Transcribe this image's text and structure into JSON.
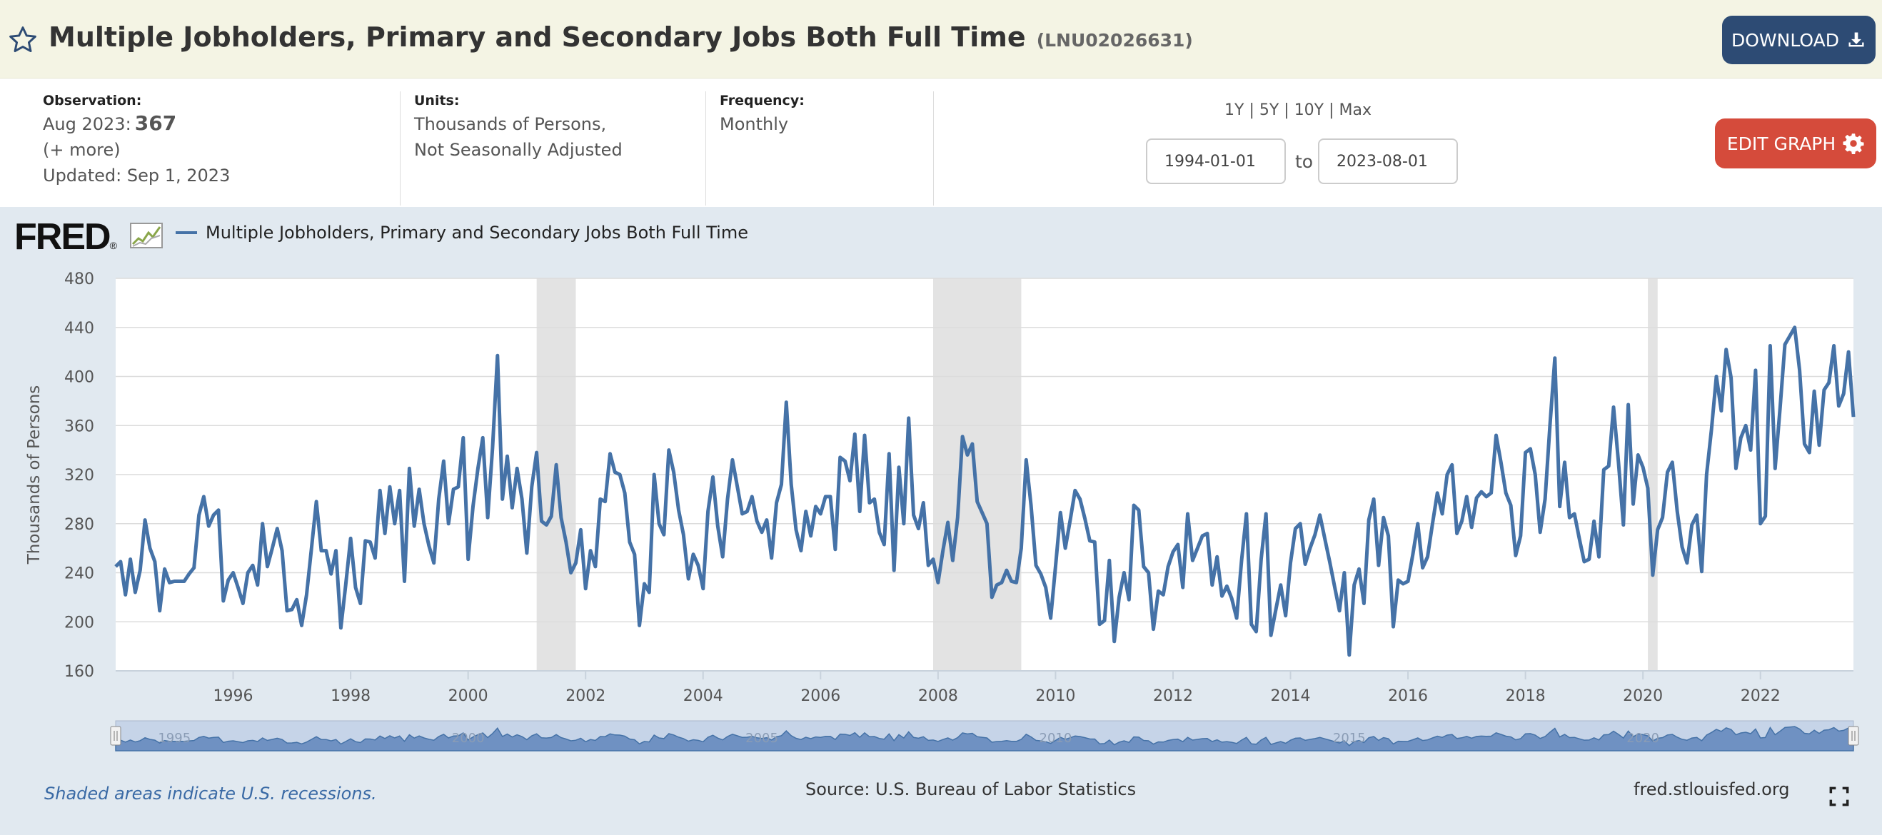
{
  "header": {
    "title": "Multiple Jobholders, Primary and Secondary Jobs Both Full Time",
    "series_id": "(LNU02026631)",
    "download_label": "DOWNLOAD",
    "favorite_icon": "star-icon",
    "download_icon": "download-icon"
  },
  "meta": {
    "observation_label": "Observation:",
    "observation_date": "Aug 2023:",
    "observation_value": "367",
    "more_label": "(+ more)",
    "updated": "Updated: Sep 1, 2023",
    "units_label": "Units:",
    "units_line1": "Thousands of Persons,",
    "units_line2": "Not Seasonally Adjusted",
    "frequency_label": "Frequency:",
    "frequency_value": "Monthly",
    "range_links": [
      "1Y",
      "5Y",
      "10Y",
      "Max"
    ],
    "start_date": "1994-01-01",
    "to_label": "to",
    "end_date": "2023-08-01",
    "edit_label": "EDIT GRAPH",
    "edit_icon": "gear-icon"
  },
  "footer": {
    "recession_note": "Shaded areas indicate U.S. recessions.",
    "source": "Source: U.S. Bureau of Labor Statistics",
    "site": "fred.stlouisfed.org",
    "fullscreen_icon": "fullscreen-icon"
  },
  "brand": {
    "logo_text": "FRED",
    "logo_mark": "®"
  },
  "colors": {
    "series": "#4572a7",
    "header_bg": "#f4f4e4",
    "download_bg": "#2d4b74",
    "edit_bg": "#d54b3b",
    "chart_bg": "#e1e9f0",
    "recession": "#e3e3e3"
  },
  "chart_data": {
    "type": "line",
    "title": "",
    "xlabel": "",
    "ylabel": "Thousands of Persons",
    "legend": "top-left",
    "legend_label": "Multiple Jobholders, Primary and Secondary Jobs Both Full Time",
    "ylim": [
      160,
      480
    ],
    "yticks": [
      160,
      200,
      240,
      280,
      320,
      360,
      400,
      440,
      480
    ],
    "xlim": [
      "1994-01",
      "2023-08"
    ],
    "xticks": [
      "1996",
      "1998",
      "2000",
      "2002",
      "2004",
      "2006",
      "2008",
      "2010",
      "2012",
      "2014",
      "2016",
      "2018",
      "2020",
      "2022"
    ],
    "recessions": [
      [
        "2001-03",
        "2001-11"
      ],
      [
        "2007-12",
        "2009-06"
      ],
      [
        "2020-02",
        "2020-04"
      ]
    ],
    "navigator_labels": [
      "1995",
      "2000",
      "2005",
      "2010",
      "2015",
      "2020"
    ],
    "x_start": "1994-01",
    "frequency": "monthly",
    "series": [
      {
        "name": "Multiple Jobholders, Primary and Secondary Jobs Both Full Time",
        "values": [
          245,
          249,
          222,
          251,
          224,
          242,
          283,
          260,
          249,
          209,
          243,
          232,
          233,
          233,
          233,
          239,
          244,
          287,
          302,
          278,
          287,
          291,
          217,
          234,
          240,
          228,
          215,
          240,
          246,
          230,
          280,
          245,
          260,
          276,
          258,
          209,
          210,
          218,
          197,
          222,
          260,
          298,
          258,
          258,
          239,
          258,
          195,
          230,
          268,
          228,
          215,
          266,
          265,
          252,
          307,
          272,
          310,
          280,
          307,
          233,
          325,
          278,
          308,
          280,
          262,
          248,
          300,
          331,
          280,
          308,
          310,
          350,
          251,
          294,
          325,
          350,
          285,
          342,
          417,
          300,
          335,
          293,
          325,
          300,
          256,
          310,
          338,
          282,
          279,
          286,
          328,
          285,
          265,
          240,
          248,
          275,
          227,
          258,
          245,
          300,
          298,
          337,
          322,
          320,
          305,
          265,
          255,
          197,
          231,
          224,
          320,
          280,
          271,
          340,
          322,
          291,
          271,
          235,
          255,
          246,
          227,
          290,
          318,
          278,
          253,
          300,
          332,
          310,
          288,
          290,
          302,
          282,
          273,
          283,
          252,
          297,
          312,
          379,
          312,
          275,
          258,
          290,
          270,
          294,
          288,
          302,
          302,
          259,
          334,
          331,
          315,
          353,
          290,
          352,
          297,
          300,
          273,
          263,
          337,
          242,
          326,
          280,
          366,
          287,
          276,
          297,
          246,
          251,
          232,
          258,
          281,
          250,
          285,
          351,
          336,
          345,
          298,
          289,
          280,
          220,
          230,
          232,
          242,
          233,
          232,
          260,
          332,
          295,
          246,
          239,
          228,
          203,
          245,
          289,
          260,
          283,
          307,
          300,
          284,
          266,
          265,
          198,
          201,
          250,
          184,
          220,
          240,
          218,
          295,
          291,
          245,
          240,
          194,
          225,
          222,
          245,
          257,
          263,
          228,
          288,
          250,
          260,
          270,
          272,
          230,
          253,
          221,
          229,
          219,
          203,
          250,
          288,
          198,
          192,
          251,
          288,
          189,
          210,
          230,
          205,
          248,
          276,
          280,
          247,
          260,
          271,
          287,
          268,
          249,
          229,
          209,
          240,
          173,
          230,
          243,
          215,
          283,
          300,
          246,
          285,
          270,
          196,
          234,
          231,
          233,
          255,
          280,
          244,
          253,
          280,
          305,
          288,
          320,
          328,
          272,
          282,
          302,
          277,
          301,
          306,
          302,
          305,
          352,
          330,
          305,
          295,
          254,
          270,
          338,
          341,
          320,
          273,
          300,
          360,
          415,
          294,
          330,
          285,
          288,
          268,
          249,
          251,
          282,
          253,
          324,
          327,
          375,
          330,
          279,
          377,
          296,
          336,
          326,
          309,
          238,
          275,
          285,
          322,
          330,
          290,
          261,
          248,
          279,
          287,
          241,
          320,
          357,
          400,
          372,
          422,
          399,
          325,
          350,
          360,
          340,
          405,
          280,
          286,
          425,
          325,
          374,
          426,
          433,
          440,
          405,
          345,
          338,
          388,
          344,
          389,
          395,
          425,
          376,
          386,
          420,
          367
        ]
      }
    ]
  }
}
